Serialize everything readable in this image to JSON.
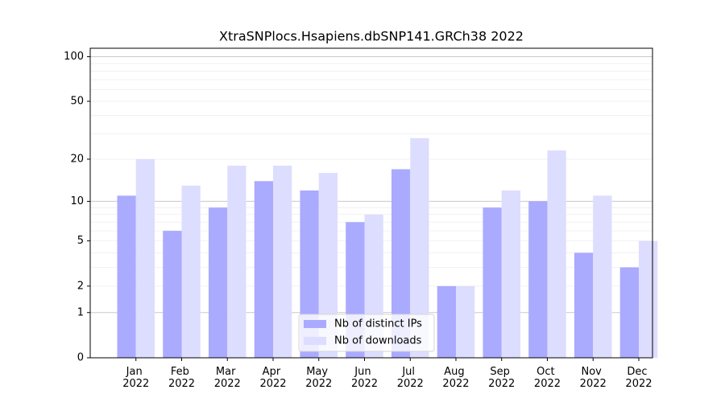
{
  "chart_data": {
    "type": "bar",
    "title": "XtraSNPlocs.Hsapiens.dbSNP141.GRCh38 2022",
    "categories": [
      "Jan 2022",
      "Feb 2022",
      "Mar 2022",
      "Apr 2022",
      "May 2022",
      "Jun 2022",
      "Jul 2022",
      "Aug 2022",
      "Sep 2022",
      "Oct 2022",
      "Nov 2022",
      "Dec 2022"
    ],
    "series": [
      {
        "name": "Nb of distinct IPs",
        "color": "#aaaaff",
        "values": [
          11,
          6,
          9,
          14,
          12,
          7,
          17,
          2,
          9,
          10,
          4,
          3
        ]
      },
      {
        "name": "Nb of downloads",
        "color": "#ddddff",
        "values": [
          20,
          13,
          18,
          18,
          16,
          8,
          28,
          2,
          12,
          23,
          11,
          5
        ]
      }
    ],
    "y_scale": "log1p",
    "ylim": [
      0,
      114
    ],
    "yticks": [
      0,
      1,
      2,
      5,
      10,
      20,
      50,
      100
    ],
    "major_gridlines": [
      1,
      10,
      100
    ],
    "minor_gridlines": [
      2,
      3,
      4,
      5,
      6,
      7,
      8,
      9,
      20,
      30,
      40,
      50,
      60,
      70,
      80,
      90
    ],
    "grid": true,
    "legend": "lower center"
  }
}
